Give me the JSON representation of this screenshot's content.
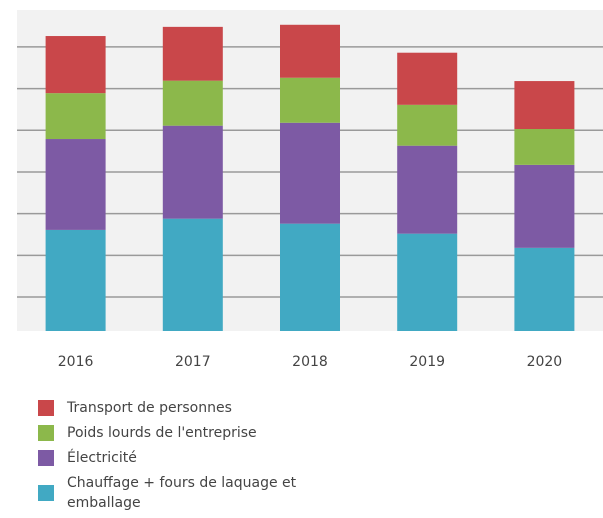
{
  "chart_data": {
    "type": "stacked_bar",
    "categories": [
      "2016",
      "2017",
      "2018",
      "2019",
      "2020"
    ],
    "series": [
      {
        "name": "Transport de personnes",
        "color": "#c9474a",
        "values": [
          1.37,
          1.29,
          1.27,
          1.25,
          1.15
        ]
      },
      {
        "name": "Poids lourds de l'entreprise",
        "color": "#8cb84b",
        "values": [
          1.1,
          1.08,
          1.08,
          0.98,
          0.86
        ]
      },
      {
        "name": "Électricité",
        "color": "#7d5aa4",
        "values": [
          2.18,
          2.23,
          2.42,
          2.11,
          1.99
        ]
      },
      {
        "name": "Chauffage + fours de laquage et emballage",
        "color": "#41a9c3",
        "values": [
          2.61,
          2.88,
          2.76,
          2.52,
          2.18
        ]
      }
    ],
    "ylim": [
      0.2,
      7.4
    ],
    "yticks": [
      1,
      2,
      3,
      4,
      5,
      6,
      7
    ],
    "grid": true
  }
}
